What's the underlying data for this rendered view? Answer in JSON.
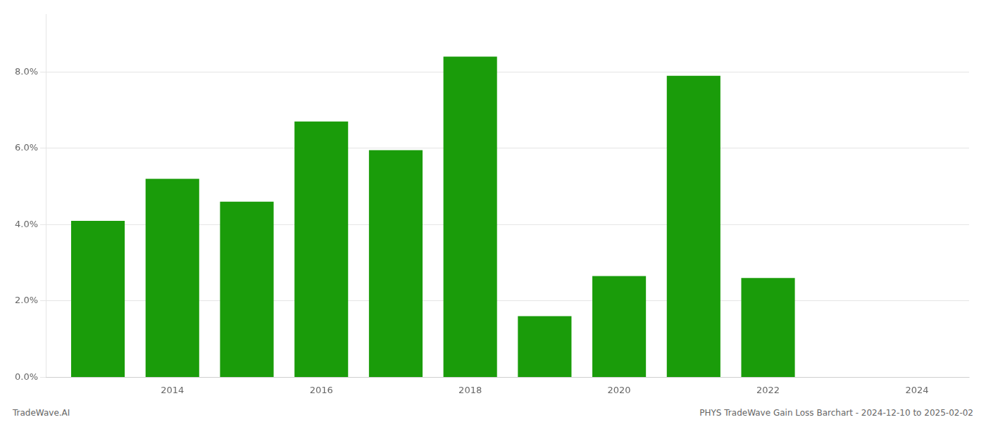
{
  "chart_data": {
    "type": "bar",
    "x": [
      2013,
      2014,
      2015,
      2016,
      2017,
      2018,
      2019,
      2020,
      2021,
      2022,
      2023
    ],
    "values": [
      0.041,
      0.052,
      0.046,
      0.067,
      0.0595,
      0.084,
      0.016,
      0.0265,
      0.079,
      0.026,
      0.0
    ],
    "color": "#1a9c0a",
    "xlim": [
      2012.3,
      2024.7
    ],
    "xticks": [
      2014,
      2016,
      2018,
      2020,
      2022,
      2024
    ],
    "ylim": [
      0,
      0.095
    ],
    "yticks": [
      {
        "value": 0.0,
        "label": "0.0%"
      },
      {
        "value": 0.02,
        "label": "2.0%"
      },
      {
        "value": 0.04,
        "label": "4.0%"
      },
      {
        "value": 0.06,
        "label": "6.0%"
      },
      {
        "value": 0.08,
        "label": "8.0%"
      }
    ],
    "grid": true,
    "annotations": [
      "TradeWave.AI",
      "PHYS TradeWave Gain Loss Barchart - 2024-12-10 to 2025-02-02"
    ]
  }
}
